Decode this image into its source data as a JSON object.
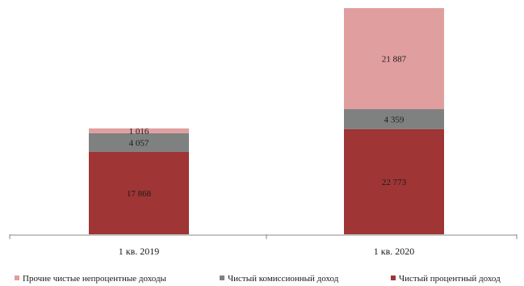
{
  "chart_data": {
    "type": "bar",
    "stacked": true,
    "categories": [
      "1 кв. 2019",
      "1 кв. 2020"
    ],
    "series": [
      {
        "name": "Чистый процентный доход",
        "values": [
          17.868,
          22.773
        ],
        "labels": [
          "17 868",
          "22 773"
        ],
        "color": "#a03535"
      },
      {
        "name": "Чистый комиссионный доход",
        "values": [
          4.057,
          4.359
        ],
        "labels": [
          "4 057",
          "4 359"
        ],
        "color": "#7f8180"
      },
      {
        "name": "Прочие чистые непроцентные доходы",
        "values": [
          1.016,
          21.887
        ],
        "labels": [
          "1 016",
          "21 887"
        ],
        "color": "#e19e9f"
      }
    ],
    "legend_order": [
      2,
      1,
      0
    ],
    "legend_position": "bottom",
    "ylim": [
      0,
      48.5
    ],
    "grid": false,
    "axis_color": "#8a8a8a"
  }
}
